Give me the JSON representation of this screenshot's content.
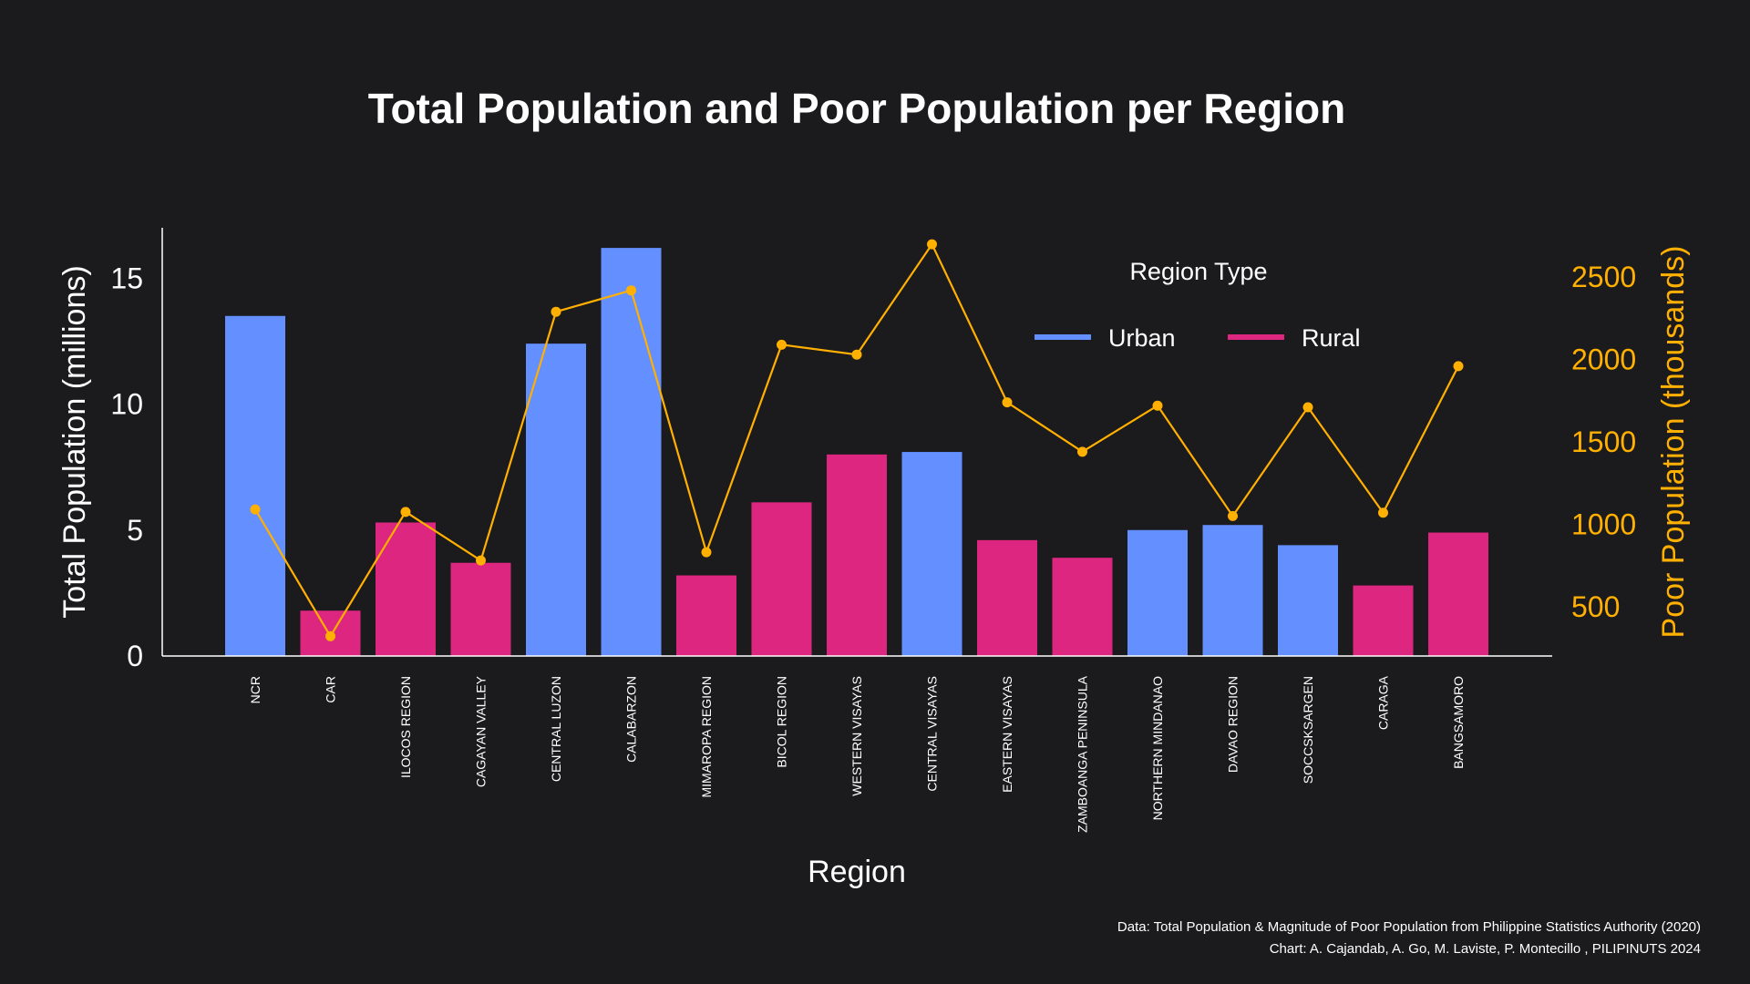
{
  "chart_data": {
    "type": "bar",
    "title": "Total Population and Poor Population per Region",
    "xlabel": "Region",
    "ylabel": "Total Population (millions)",
    "y2label": "Poor Population (thousands)",
    "ylim": [
      0,
      17
    ],
    "y2lim": [
      200,
      2800
    ],
    "yticks": [
      0,
      5,
      10,
      15
    ],
    "y2ticks": [
      500,
      1000,
      1500,
      2000,
      2500
    ],
    "grid": false,
    "legend": {
      "title": "Region Type",
      "placement": "top-right",
      "items": [
        {
          "name": "Urban",
          "color": "#648fff"
        },
        {
          "name": "Rural",
          "color": "#dc267f"
        }
      ]
    },
    "line_color": "#ffb000",
    "categories": [
      "NCR",
      "CAR",
      "ILOCOS REGION",
      "CAGAYAN VALLEY",
      "CENTRAL LUZON",
      "CALABARZON",
      "MIMAROPA REGION",
      "BICOL REGION",
      "WESTERN VISAYAS",
      "CENTRAL VISAYAS",
      "EASTERN VISAYAS",
      "ZAMBOANGA PENINSULA",
      "NORTHERN MINDANAO",
      "DAVAO REGION",
      "SOCCSKSARGEN",
      "CARAGA",
      "BANGSAMORO"
    ],
    "region_type": [
      "Urban",
      "Rural",
      "Rural",
      "Rural",
      "Urban",
      "Urban",
      "Rural",
      "Rural",
      "Rural",
      "Urban",
      "Rural",
      "Rural",
      "Urban",
      "Urban",
      "Urban",
      "Rural",
      "Rural"
    ],
    "series": [
      {
        "name": "Total Population (millions)",
        "type": "bar",
        "axis": "left",
        "values": [
          13.5,
          1.8,
          5.3,
          3.7,
          12.4,
          16.2,
          3.2,
          6.1,
          8.0,
          8.1,
          4.6,
          3.9,
          5.0,
          5.2,
          4.4,
          2.8,
          4.9
        ]
      },
      {
        "name": "Poor Population (thousands)",
        "type": "line",
        "axis": "right",
        "values": [
          1090,
          320,
          1075,
          780,
          2290,
          2420,
          830,
          2090,
          2030,
          2700,
          1740,
          1440,
          1720,
          1050,
          1710,
          1070,
          1960
        ]
      }
    ]
  },
  "footer": {
    "source": "Data: Total Population & Magnitude of Poor Population from Philippine Statistics Authority (2020)",
    "credit": "Chart: A. Cajandab, A. Go, M. Laviste, P. Montecillo , PILIPINUTS 2024"
  }
}
